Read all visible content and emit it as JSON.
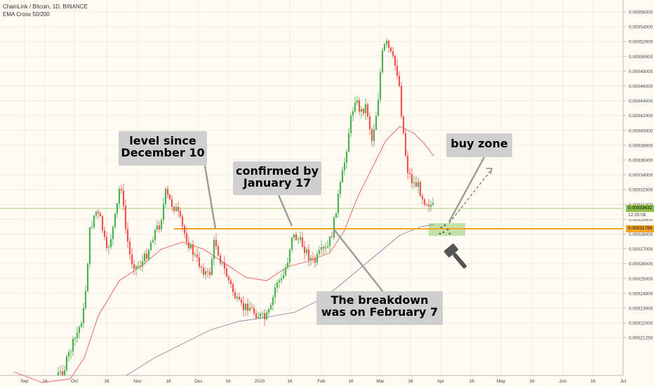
{
  "header": {
    "title": "ChainLink / Bitcoin, 1D, BINANCE",
    "indicator": "EMA Cross 50/200"
  },
  "price_tags": {
    "current": "0.00033632",
    "countdown": "12:35:08",
    "level": "0.00031789"
  },
  "annotations": {
    "level_since": [
      "level since",
      "December 10"
    ],
    "confirmed_by": [
      "confirmed by",
      "January 17"
    ],
    "breakdown": [
      "The breakdown",
      "was on February 7"
    ],
    "buy_zone": "buy zone"
  },
  "colors": {
    "background": "#fffbf2",
    "up_candle": "#4caf50",
    "down_candle": "#ef5350",
    "ema50": "#e5605a",
    "ema200": "#8a8aa8",
    "level_line": "#f5a623",
    "current_line": "#8bc34a",
    "buy_zone_box": "#b7dd9c",
    "callout_bg": "#cfcfcf"
  },
  "icons": {
    "hammer": "gavel-icon"
  },
  "chart_data": {
    "type": "candlestick",
    "x_axis_type": "date",
    "x_ticks": [
      "Sep",
      "16",
      "Oct",
      "16",
      "Nov",
      "16",
      "Dec",
      "16",
      "2020",
      "16",
      "Feb",
      "16",
      "Mar",
      "16",
      "Apr",
      "16",
      "May",
      "16",
      "Jun",
      "16",
      "Jul"
    ],
    "y_ticks": [
      "0.00056000",
      "0.00054000",
      "0.00052000",
      "0.00050000",
      "0.00048000",
      "0.00046000",
      "0.00044000",
      "0.00042000",
      "0.00040000",
      "0.00038000",
      "0.00036000",
      "0.00034000",
      "0.00032500",
      "0.00031000",
      "0.00029500",
      "0.00028000",
      "0.00027000",
      "0.00026000",
      "0.00025000",
      "0.00024000",
      "0.00023000",
      "0.00022000",
      "0.00021250"
    ],
    "ylim": [
      0.000205,
      0.000575
    ],
    "horizontal_levels": [
      {
        "name": "support",
        "value": 0.00031789
      },
      {
        "name": "current",
        "value": 0.00033632
      }
    ],
    "series_ohlc_approx": [
      {
        "date": "2019-10-01",
        "close": 0.000235
      },
      {
        "date": "2019-10-15",
        "close": 0.000345
      },
      {
        "date": "2019-10-28",
        "close": 0.000365
      },
      {
        "date": "2019-11-10",
        "close": 0.0003
      },
      {
        "date": "2019-11-22",
        "close": 0.000355
      },
      {
        "date": "2019-12-05",
        "close": 0.000295
      },
      {
        "date": "2019-12-10",
        "close": 0.000318
      },
      {
        "date": "2019-12-25",
        "close": 0.000255
      },
      {
        "date": "2020-01-05",
        "close": 0.00025
      },
      {
        "date": "2020-01-17",
        "close": 0.000318
      },
      {
        "date": "2020-01-28",
        "close": 0.0003
      },
      {
        "date": "2020-02-07",
        "close": 0.00034
      },
      {
        "date": "2020-02-20",
        "close": 0.000445
      },
      {
        "date": "2020-03-05",
        "close": 0.00055
      },
      {
        "date": "2020-03-15",
        "close": 0.00042
      },
      {
        "date": "2020-03-26",
        "close": 0.000336
      }
    ]
  }
}
